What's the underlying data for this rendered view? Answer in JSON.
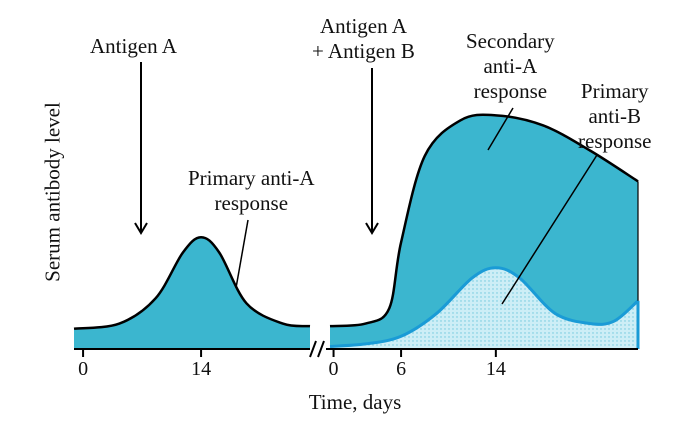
{
  "chart_data": {
    "type": "area",
    "xlabel": "Time, days",
    "ylabel": "Serum antibody level",
    "x_ticks": [
      "0",
      "14",
      "0",
      "6",
      "14"
    ],
    "series": [
      {
        "name": "Primary anti-A response",
        "color": "#3bb6cf",
        "points": [
          [
            0,
            0.08
          ],
          [
            5,
            0.1
          ],
          [
            9,
            0.2
          ],
          [
            12,
            0.38
          ],
          [
            14,
            0.44
          ],
          [
            16,
            0.38
          ],
          [
            19,
            0.18
          ],
          [
            23,
            0.1
          ],
          [
            26,
            0.09
          ]
        ]
      },
      {
        "name": "Secondary anti-A response",
        "color": "#3bb6cf",
        "points": [
          [
            0,
            0.09
          ],
          [
            3,
            0.1
          ],
          [
            5,
            0.16
          ],
          [
            6,
            0.42
          ],
          [
            8,
            0.76
          ],
          [
            11,
            0.9
          ],
          [
            14,
            0.92
          ],
          [
            18,
            0.88
          ],
          [
            22,
            0.78
          ],
          [
            26,
            0.66
          ]
        ]
      },
      {
        "name": "Primary anti-B response",
        "color": "#1a9bd6",
        "points": [
          [
            0,
            0.01
          ],
          [
            3,
            0.02
          ],
          [
            6,
            0.05
          ],
          [
            9,
            0.14
          ],
          [
            12,
            0.28
          ],
          [
            14,
            0.32
          ],
          [
            16,
            0.28
          ],
          [
            19,
            0.14
          ],
          [
            22,
            0.1
          ],
          [
            24,
            0.11
          ],
          [
            26,
            0.19
          ]
        ]
      }
    ],
    "annotations": {
      "antigen_first": "Antigen A",
      "antigen_second_line1": "Antigen A",
      "antigen_second_line2": "+ Antigen B",
      "primary_a_line1": "Primary anti-A",
      "primary_a_line2": "response",
      "secondary_a_line1": "Secondary",
      "secondary_a_line2": "anti-A",
      "secondary_a_line3": "response",
      "primary_b_line1": "Primary",
      "primary_b_line2": "anti-B",
      "primary_b_line3": "response"
    },
    "axis_break": "//",
    "grid": false
  }
}
